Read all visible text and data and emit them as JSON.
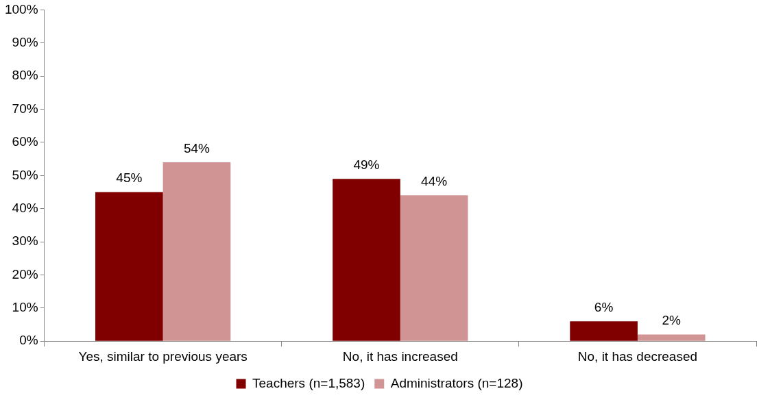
{
  "chart_data": {
    "type": "bar",
    "categories": [
      "Yes, similar to previous years",
      "No, it has increased",
      "No, it has decreased"
    ],
    "series": [
      {
        "name": "Teachers (n=1,583)",
        "color": "#800000",
        "values": [
          45,
          49,
          6
        ],
        "value_labels": [
          "45%",
          "49%",
          "6%"
        ]
      },
      {
        "name": "Administrators (n=128)",
        "color": "#d09494",
        "values": [
          54,
          44,
          2
        ],
        "value_labels": [
          "54%",
          "44%",
          "2%"
        ]
      }
    ],
    "ylim": [
      0,
      100
    ],
    "yticks": [
      {
        "value": 0,
        "label": "0%"
      },
      {
        "value": 10,
        "label": "10%"
      },
      {
        "value": 20,
        "label": "20%"
      },
      {
        "value": 30,
        "label": "30%"
      },
      {
        "value": 40,
        "label": "40%"
      },
      {
        "value": 50,
        "label": "50%"
      },
      {
        "value": 60,
        "label": "60%"
      },
      {
        "value": 70,
        "label": "70%"
      },
      {
        "value": 80,
        "label": "80%"
      },
      {
        "value": 90,
        "label": "90%"
      },
      {
        "value": 100,
        "label": "100%"
      }
    ],
    "grid": false,
    "legend": "bottom"
  }
}
